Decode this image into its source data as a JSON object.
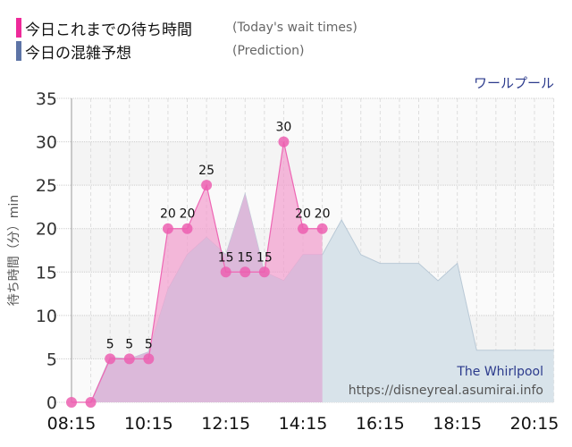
{
  "legend": {
    "items": [
      {
        "label_jp": "今日これまでの待ち時間",
        "label_en": "(Today's wait times)",
        "color": "#ee2a9a"
      },
      {
        "label_jp": "今日の混雑予想",
        "label_en": "(Prediction)",
        "color": "#5d74a6"
      }
    ]
  },
  "attraction_name_jp": "ワールプール",
  "watermark": {
    "title": "The Whirlpool",
    "url": "https://disneyreal.asumirai.info"
  },
  "colors": {
    "actual_fill": "#f29ccd",
    "actual_line": "#ee66b4",
    "actual_marker": "#ec5fb0",
    "prediction_fill": "#d8e3ea",
    "prediction_line": "#b9c9d6",
    "overlap_fill": "#dcb9da"
  },
  "chart_data": {
    "type": "area",
    "title": "ワールプール",
    "xlabel": "",
    "ylabel": "待ち時間（分）min",
    "ylim": [
      0,
      35
    ],
    "yticks": [
      0,
      5,
      10,
      15,
      20,
      25,
      30,
      35
    ],
    "xticks": [
      "08:15",
      "10:15",
      "12:15",
      "14:15",
      "16:15",
      "18:15",
      "20:15"
    ],
    "grid": true,
    "legend_position": "top-left",
    "series": [
      {
        "name": "今日これまでの待ち時間 (Today's wait times)",
        "x": [
          "08:15",
          "08:45",
          "09:15",
          "09:45",
          "10:15",
          "10:45",
          "11:15",
          "11:45",
          "12:15",
          "12:45",
          "13:15",
          "13:45",
          "14:15",
          "14:45"
        ],
        "values": [
          0,
          0,
          5,
          5,
          5,
          20,
          20,
          25,
          15,
          15,
          15,
          30,
          20,
          20
        ],
        "labels_shown": [
          null,
          null,
          5,
          5,
          5,
          20,
          20,
          25,
          15,
          15,
          15,
          30,
          20,
          20
        ]
      },
      {
        "name": "今日の混雑予想 (Prediction)",
        "x": [
          "08:45",
          "09:15",
          "09:45",
          "10:15",
          "10:45",
          "11:15",
          "11:45",
          "12:15",
          "12:45",
          "13:15",
          "13:45",
          "14:15",
          "14:45",
          "15:15",
          "15:45",
          "16:15",
          "16:45",
          "17:15",
          "17:45",
          "18:15",
          "18:45",
          "19:15",
          "19:45",
          "20:15",
          "20:45"
        ],
        "values": [
          0,
          5.2,
          5,
          5.8,
          13,
          17,
          19,
          17,
          24,
          15,
          14,
          17,
          17,
          21,
          17,
          16,
          16,
          16,
          14,
          16,
          6,
          6,
          6,
          6,
          6
        ]
      }
    ]
  }
}
